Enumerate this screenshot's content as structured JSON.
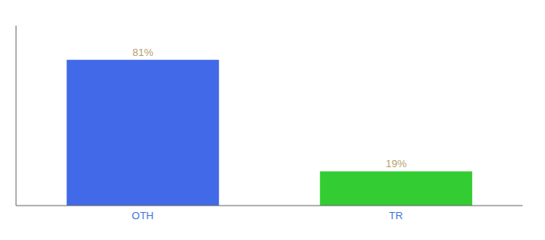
{
  "chart_data": {
    "type": "bar",
    "categories": [
      "OTH",
      "TR"
    ],
    "values": [
      81,
      19
    ],
    "value_labels": [
      "81%",
      "19%"
    ],
    "colors": [
      "#4169e8",
      "#33cc33"
    ],
    "ylim": [
      0,
      100
    ],
    "data_labels": true,
    "tick_labels": "x"
  }
}
